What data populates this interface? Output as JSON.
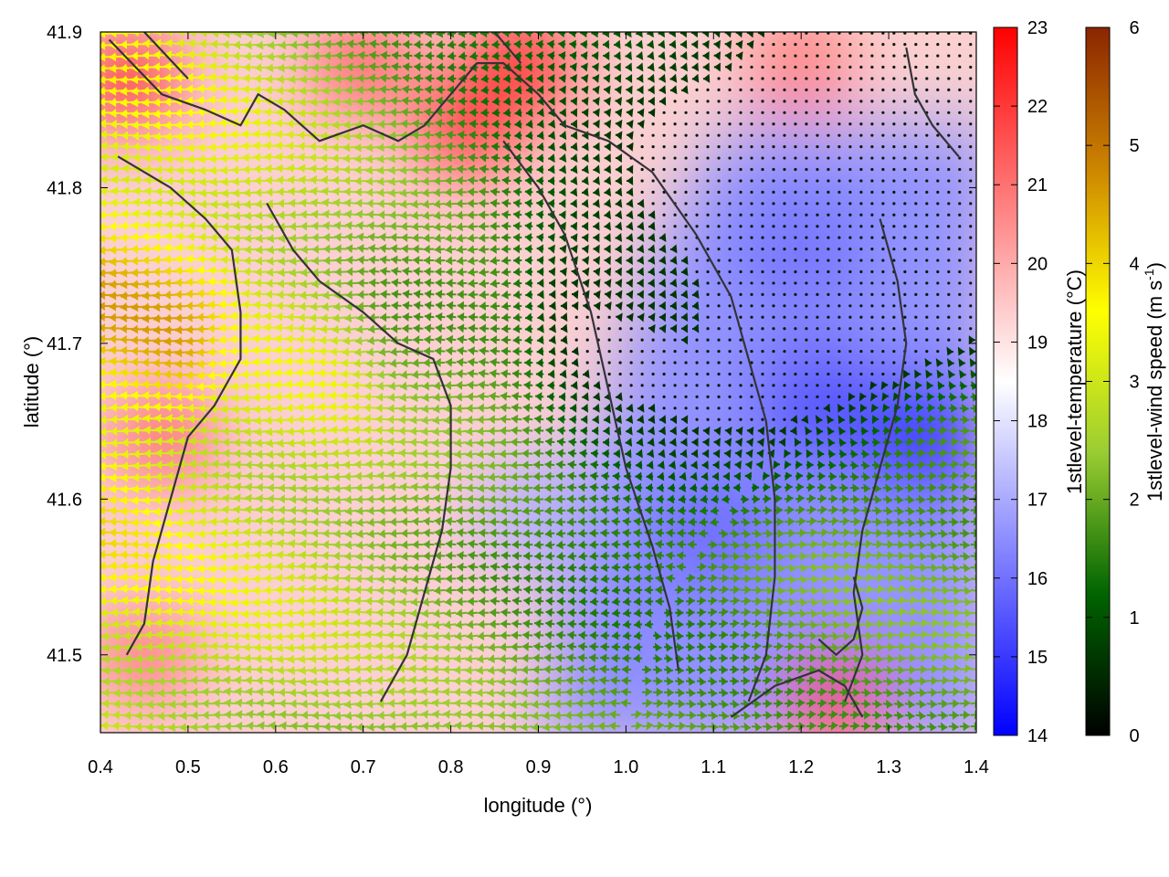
{
  "chart_data": {
    "type": "heatmap",
    "overlay": "wind-vectors-and-coastline",
    "xlabel": "longitude (°)",
    "ylabel": "latitude (°)",
    "xlim": [
      0.4,
      1.4
    ],
    "ylim": [
      41.45,
      41.9
    ],
    "x_ticks": [
      "0.4",
      "0.5",
      "0.6",
      "0.7",
      "0.8",
      "0.9",
      "1.0",
      "1.1",
      "1.2",
      "1.3",
      "1.4"
    ],
    "y_ticks": [
      "41.5",
      "41.6",
      "41.7",
      "41.8",
      "41.9"
    ],
    "temperature_colorbar": {
      "label": "1stlevel-temperature (°C)",
      "range": [
        14,
        23
      ],
      "ticks": [
        "14",
        "15",
        "16",
        "17",
        "18",
        "19",
        "20",
        "21",
        "22",
        "23"
      ],
      "colors": [
        "#0000ff",
        "#ffffff",
        "#ff0000"
      ]
    },
    "wind_colorbar": {
      "label": "1stlevel-wind speed (m s",
      "label_sup": "-1",
      "label_end": ")",
      "range": [
        0,
        6
      ],
      "ticks": [
        "0",
        "1",
        "2",
        "3",
        "4",
        "5",
        "6"
      ],
      "colors": [
        "#000000",
        "#006400",
        "#9acd32",
        "#ffff00",
        "#cd8500",
        "#8b2500"
      ]
    },
    "temperature_field": {
      "description": "warm (20-22 °C) over land west and north, cool (15-17 °C) over sea south-east",
      "hotspots": [
        {
          "lon": 0.43,
          "lat": 41.87,
          "value": 22.3
        },
        {
          "lon": 0.88,
          "lat": 41.88,
          "value": 22.6
        },
        {
          "lon": 0.82,
          "lat": 41.84,
          "value": 22.2
        },
        {
          "lon": 0.7,
          "lat": 41.88,
          "value": 21.5
        },
        {
          "lon": 1.2,
          "lat": 41.88,
          "value": 21.0
        },
        {
          "lon": 0.47,
          "lat": 41.64,
          "value": 21.3
        },
        {
          "lon": 0.45,
          "lat": 41.5,
          "value": 21.0
        },
        {
          "lon": 1.24,
          "lat": 41.47,
          "value": 22.0
        }
      ],
      "coldspots": [
        {
          "lon": 1.34,
          "lat": 41.64,
          "value": 14.8
        },
        {
          "lon": 1.22,
          "lat": 41.66,
          "value": 15.3
        },
        {
          "lon": 1.1,
          "lat": 41.58,
          "value": 15.8
        },
        {
          "lon": 1.2,
          "lat": 41.76,
          "value": 16.0
        },
        {
          "lon": 1.0,
          "lat": 41.52,
          "value": 16.4
        },
        {
          "lon": 0.9,
          "lat": 41.59,
          "value": 17.0
        }
      ]
    },
    "wind_field": {
      "description": "westward flow over land, weakening to calm toward the east, eastward flow near the south-east coast",
      "max_speed": 4.2,
      "regions": [
        {
          "lon": 0.45,
          "lat": 41.7,
          "speed": 4.0,
          "direction": "west"
        },
        {
          "lon": 0.62,
          "lat": 41.68,
          "speed": 3.0,
          "direction": "west"
        },
        {
          "lon": 0.8,
          "lat": 41.7,
          "speed": 2.0,
          "direction": "west"
        },
        {
          "lon": 1.0,
          "lat": 41.72,
          "speed": 0.6,
          "direction": "west"
        },
        {
          "lon": 1.2,
          "lat": 41.75,
          "speed": 0.2,
          "direction": "variable"
        },
        {
          "lon": 1.36,
          "lat": 41.55,
          "speed": 2.0,
          "direction": "east"
        }
      ]
    },
    "coastline_segments": [
      [
        [
          0.41,
          41.895
        ],
        [
          0.47,
          41.86
        ],
        [
          0.52,
          41.85
        ],
        [
          0.54,
          41.845
        ],
        [
          0.56,
          41.84
        ],
        [
          0.58,
          41.86
        ],
        [
          0.61,
          41.85
        ],
        [
          0.65,
          41.83
        ],
        [
          0.7,
          41.84
        ],
        [
          0.74,
          41.83
        ],
        [
          0.77,
          41.84
        ],
        [
          0.8,
          41.86
        ],
        [
          0.83,
          41.88
        ],
        [
          0.86,
          41.88
        ],
        [
          0.9,
          41.86
        ],
        [
          0.93,
          41.84
        ],
        [
          0.98,
          41.83
        ],
        [
          1.03,
          41.81
        ],
        [
          1.08,
          41.77
        ],
        [
          1.12,
          41.73
        ],
        [
          1.14,
          41.69
        ],
        [
          1.16,
          41.65
        ],
        [
          1.17,
          41.6
        ],
        [
          1.17,
          41.55
        ],
        [
          1.16,
          41.5
        ],
        [
          1.14,
          41.47
        ]
      ],
      [
        [
          0.42,
          41.82
        ],
        [
          0.48,
          41.8
        ],
        [
          0.52,
          41.78
        ],
        [
          0.55,
          41.76
        ],
        [
          0.56,
          41.72
        ],
        [
          0.56,
          41.69
        ],
        [
          0.53,
          41.66
        ],
        [
          0.5,
          41.64
        ],
        [
          0.48,
          41.6
        ],
        [
          0.46,
          41.56
        ],
        [
          0.45,
          41.52
        ],
        [
          0.43,
          41.5
        ]
      ],
      [
        [
          0.59,
          41.79
        ],
        [
          0.62,
          41.76
        ],
        [
          0.65,
          41.74
        ],
        [
          0.7,
          41.72
        ],
        [
          0.74,
          41.7
        ],
        [
          0.78,
          41.69
        ],
        [
          0.8,
          41.66
        ],
        [
          0.8,
          41.62
        ],
        [
          0.79,
          41.58
        ],
        [
          0.77,
          41.54
        ],
        [
          0.75,
          41.5
        ],
        [
          0.72,
          41.47
        ]
      ],
      [
        [
          0.86,
          41.83
        ],
        [
          0.9,
          41.8
        ],
        [
          0.93,
          41.77
        ],
        [
          0.96,
          41.72
        ],
        [
          0.98,
          41.67
        ],
        [
          1.0,
          41.62
        ],
        [
          1.03,
          41.57
        ],
        [
          1.05,
          41.53
        ],
        [
          1.06,
          41.49
        ]
      ],
      [
        [
          1.29,
          41.78
        ],
        [
          1.31,
          41.74
        ],
        [
          1.32,
          41.7
        ],
        [
          1.31,
          41.66
        ],
        [
          1.29,
          41.62
        ],
        [
          1.27,
          41.58
        ],
        [
          1.26,
          41.54
        ],
        [
          1.27,
          41.5
        ],
        [
          1.25,
          41.47
        ]
      ],
      [
        [
          1.32,
          41.89
        ],
        [
          1.33,
          41.86
        ],
        [
          1.35,
          41.84
        ],
        [
          1.38,
          41.82
        ]
      ],
      [
        [
          0.45,
          41.9
        ],
        [
          0.5,
          41.87
        ]
      ],
      [
        [
          0.85,
          41.9
        ],
        [
          0.88,
          41.88
        ]
      ],
      [
        [
          1.12,
          41.46
        ],
        [
          1.17,
          41.48
        ],
        [
          1.22,
          41.49
        ],
        [
          1.25,
          41.48
        ],
        [
          1.27,
          41.46
        ]
      ],
      [
        [
          1.22,
          41.51
        ],
        [
          1.24,
          41.5
        ],
        [
          1.26,
          41.51
        ],
        [
          1.27,
          41.53
        ],
        [
          1.26,
          41.55
        ]
      ]
    ]
  }
}
